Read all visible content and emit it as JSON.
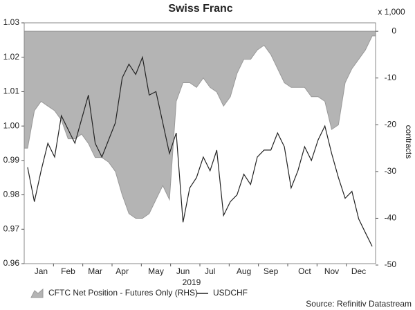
{
  "chart_data": {
    "type": "line",
    "title": "Swiss Franc",
    "categories": [
      null,
      null,
      "Jan",
      null,
      null,
      null,
      "Feb",
      null,
      null,
      null,
      "Mar",
      null,
      null,
      null,
      "Apr",
      null,
      null,
      null,
      null,
      "May",
      null,
      null,
      null,
      "Jun",
      null,
      null,
      null,
      "Jul",
      null,
      null,
      null,
      null,
      "Aug",
      null,
      null,
      null,
      "Sep",
      null,
      null,
      null,
      null,
      "Oct",
      null,
      null,
      null,
      "Nov",
      null,
      null,
      null,
      "Dec",
      null,
      null
    ],
    "x_label": "2019",
    "y2_label": "contracts",
    "y2_unit": "x 1,000",
    "source": "Source: Refinitiv Datastream",
    "ylim": [
      0.96,
      1.03
    ],
    "yticks": [
      0.96,
      0.97,
      0.98,
      0.99,
      {
        "value": 1,
        "label": "1.00"
      },
      1.01,
      1.02,
      1.03
    ],
    "y2lim": [
      -49.7,
      1.8
    ],
    "y2ticks": [
      -50,
      -40,
      -30,
      -20,
      -10,
      0
    ],
    "series": [
      {
        "name": "CFTC Net Position - Futures Only (RHS)",
        "type": "area",
        "axis": "y2",
        "color": "#b4b4b4",
        "values": [
          -25,
          -17,
          -15,
          -16,
          -17,
          -19,
          -23,
          -23,
          -22,
          -24,
          -27,
          -27,
          -28,
          -30,
          -35,
          -39,
          -40,
          -40,
          -39,
          -36,
          -33,
          -36,
          -15,
          -11,
          -11,
          -12,
          -10,
          -12,
          -13,
          -16,
          -14,
          -9,
          -6,
          -6,
          -4,
          -3,
          -5,
          -8,
          -11,
          -12,
          -12,
          -12,
          -14,
          -14,
          -15,
          -21,
          -20,
          -11,
          -8,
          -6,
          -4,
          -1
        ]
      },
      {
        "name": "USDCHF",
        "type": "line",
        "color": "#222222",
        "values": [
          0.988,
          0.978,
          0.987,
          0.995,
          0.991,
          1.003,
          0.999,
          0.995,
          1.002,
          1.009,
          0.995,
          0.991,
          0.996,
          1.001,
          1.014,
          1.018,
          1.015,
          1.02,
          1.009,
          1.01,
          1.001,
          0.992,
          0.998,
          0.972,
          0.982,
          0.985,
          0.991,
          0.987,
          0.993,
          0.974,
          0.978,
          0.98,
          0.986,
          0.983,
          0.991,
          0.993,
          0.993,
          0.998,
          0.994,
          0.982,
          0.987,
          0.994,
          0.99,
          0.996,
          1.0,
          0.992,
          0.985,
          0.979,
          0.981,
          0.973,
          0.969,
          0.965
        ]
      }
    ]
  }
}
